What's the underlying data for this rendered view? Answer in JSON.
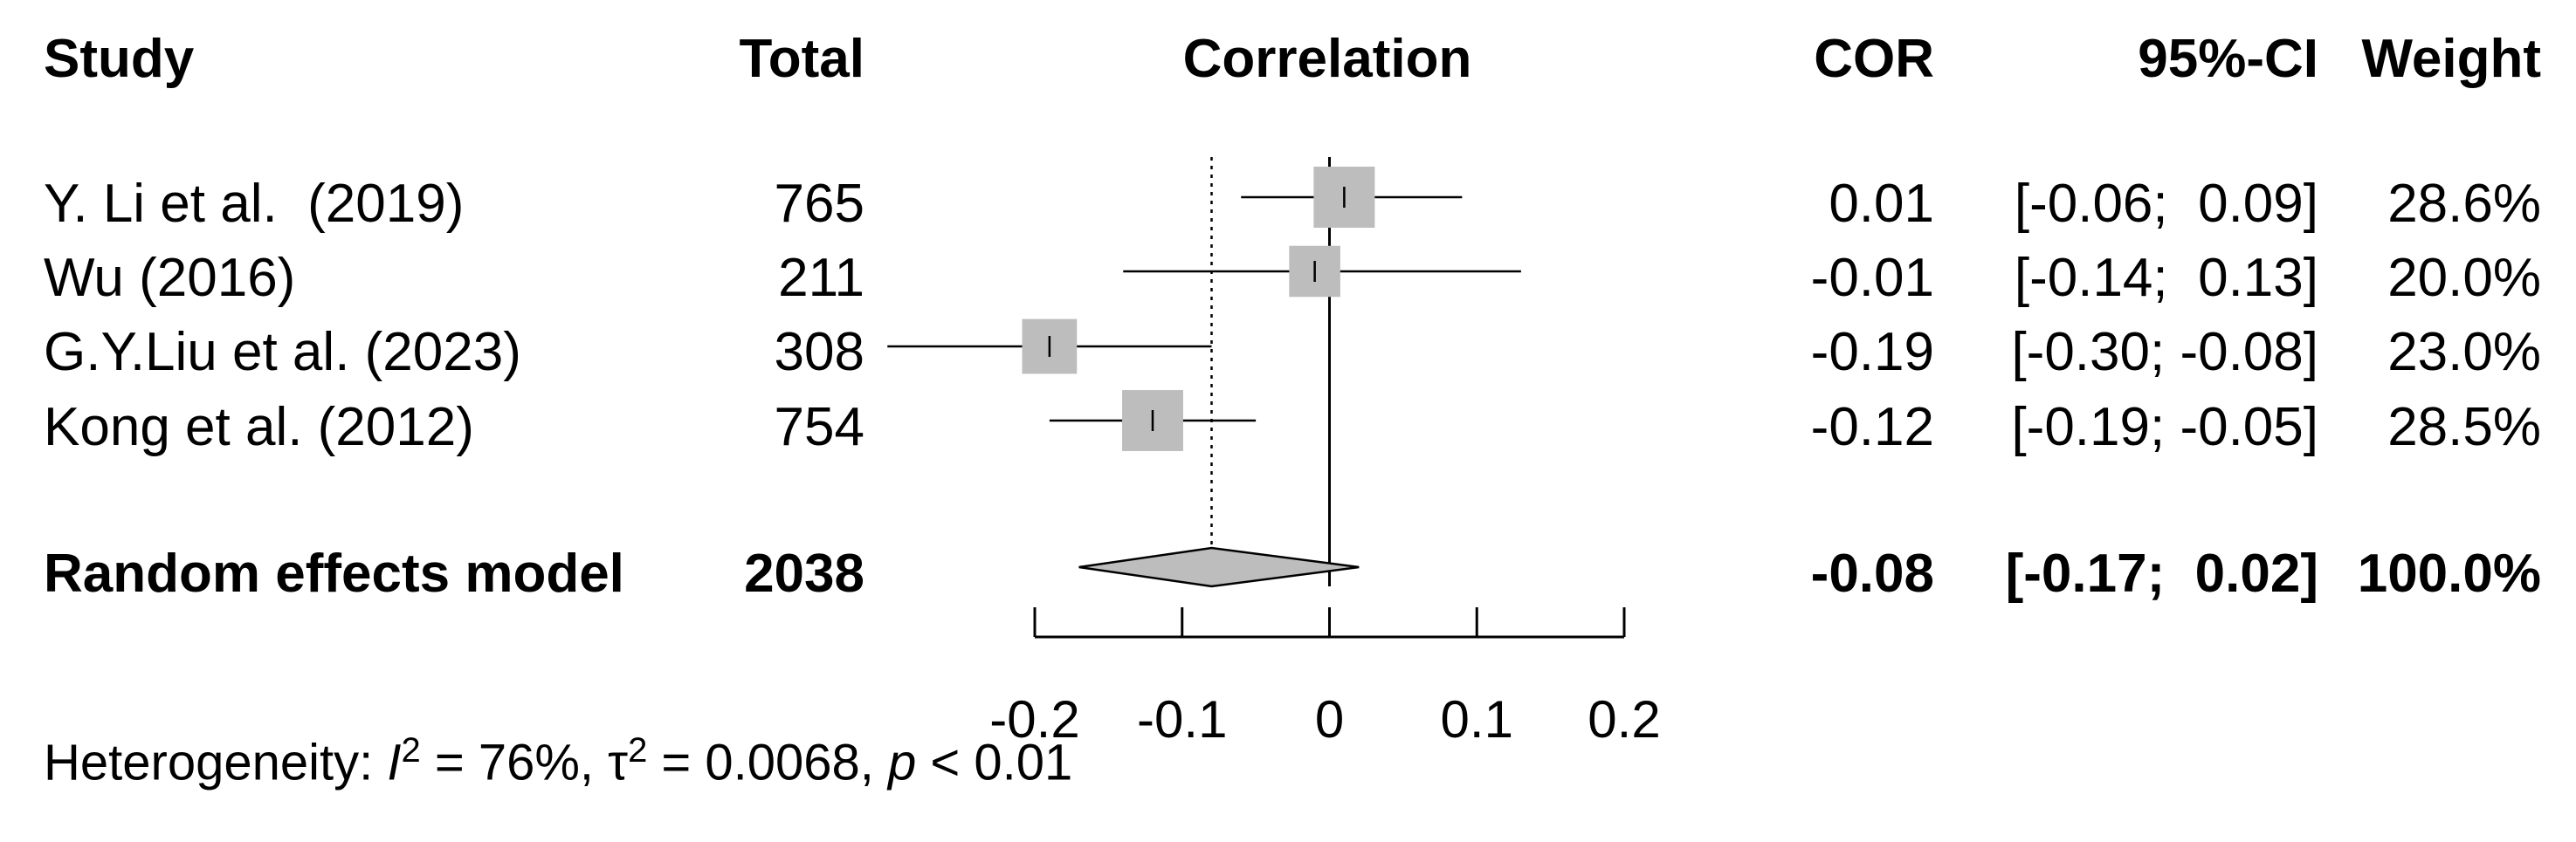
{
  "headers": {
    "study": "Study",
    "total": "Total",
    "correlation": "Correlation",
    "cor": "COR",
    "ci": "95%-CI",
    "weight": "Weight"
  },
  "studies": [
    {
      "name": "Y. Li et al.  (2019)",
      "total": "765",
      "cor": "0.01",
      "ci_text": "[-0.06;  0.09]",
      "weight": "28.6%",
      "estimate": 0.01,
      "lower": -0.06,
      "upper": 0.09,
      "weight_value": 28.6
    },
    {
      "name": "Wu (2016)",
      "total": "211",
      "cor": "-0.01",
      "ci_text": "[-0.14;  0.13]",
      "weight": "20.0%",
      "estimate": -0.01,
      "lower": -0.14,
      "upper": 0.13,
      "weight_value": 20.0
    },
    {
      "name": "G.Y.Liu et al. (2023)",
      "total": "308",
      "cor": "-0.19",
      "ci_text": "[-0.30; -0.08]",
      "weight": "23.0%",
      "estimate": -0.19,
      "lower": -0.3,
      "upper": -0.08,
      "weight_value": 23.0
    },
    {
      "name": "Kong et al. (2012)",
      "total": "754",
      "cor": "-0.12",
      "ci_text": "[-0.19; -0.05]",
      "weight": "28.5%",
      "estimate": -0.12,
      "lower": -0.19,
      "upper": -0.05,
      "weight_value": 28.5
    }
  ],
  "pooled": {
    "name": "Random effects model",
    "total": "2038",
    "cor": "-0.08",
    "ci_text": "[-0.17;  0.02]",
    "weight": "100.0%",
    "estimate": -0.08,
    "lower": -0.17,
    "upper": 0.02
  },
  "heterogeneity": {
    "prefix": "Heterogeneity: ",
    "i_symbol": "I",
    "i_sup": "2",
    "i_value": " = 76%, ",
    "tau_symbol": "τ",
    "tau_sup": "2",
    "tau_value": " = 0.0068, ",
    "p_symbol": "p",
    "p_value": " < 0.01"
  },
  "chart_data": {
    "type": "forest",
    "title": "Correlation",
    "xlim": [
      -0.2,
      0.2
    ],
    "ticks": [
      -0.2,
      -0.1,
      0,
      0.1,
      0.2
    ],
    "tick_labels": [
      "-0.2",
      "-0.1",
      "0",
      "0.1",
      "0.2"
    ],
    "null_line": 0,
    "pooled_reference": -0.08,
    "series": [
      {
        "name": "Y. Li et al.  (2019)",
        "estimate": 0.01,
        "lower": -0.06,
        "upper": 0.09,
        "weight": 28.6
      },
      {
        "name": "Wu (2016)",
        "estimate": -0.01,
        "lower": -0.14,
        "upper": 0.13,
        "weight": 20.0
      },
      {
        "name": "G.Y.Liu et al. (2023)",
        "estimate": -0.19,
        "lower": -0.3,
        "upper": -0.08,
        "weight": 23.0
      },
      {
        "name": "Kong et al. (2012)",
        "estimate": -0.12,
        "lower": -0.19,
        "upper": -0.05,
        "weight": 28.5
      }
    ],
    "pooled": {
      "name": "Random effects model",
      "estimate": -0.08,
      "lower": -0.17,
      "upper": 0.02
    }
  }
}
